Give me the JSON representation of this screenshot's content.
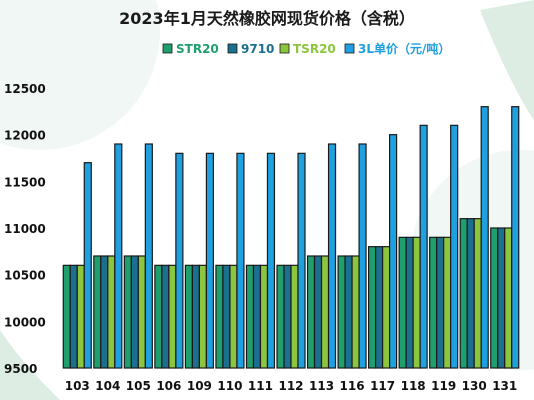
{
  "chart_data": {
    "type": "bar",
    "title": "2023年1月天然橡胶网现货价格（含税）",
    "categories": [
      "103",
      "104",
      "105",
      "106",
      "109",
      "110",
      "111",
      "112",
      "113",
      "116",
      "117",
      "118",
      "119",
      "130",
      "131"
    ],
    "series": [
      {
        "name": "STR20",
        "color": "#1f9e6e",
        "values": [
          10600,
          10700,
          10700,
          10600,
          10600,
          10600,
          10600,
          10600,
          10700,
          10700,
          10800,
          10900,
          10900,
          11100,
          11000
        ]
      },
      {
        "name": "9710",
        "color": "#1b6f8f",
        "values": [
          10600,
          10700,
          10700,
          10600,
          10600,
          10600,
          10600,
          10600,
          10700,
          10700,
          10800,
          10900,
          10900,
          11100,
          11000
        ]
      },
      {
        "name": "TSR20",
        "color": "#8cc63f",
        "values": [
          10600,
          10700,
          10700,
          10600,
          10600,
          10600,
          10600,
          10600,
          10700,
          10700,
          10800,
          10900,
          10900,
          11100,
          11000
        ]
      },
      {
        "name": "3L单价（元/吨）",
        "color": "#1fa0e0",
        "values": [
          11700,
          11900,
          11900,
          11800,
          11800,
          11800,
          11800,
          11800,
          11900,
          11900,
          12000,
          12100,
          12100,
          12300,
          12300
        ]
      }
    ],
    "yticks": [
      9500,
      10000,
      10500,
      11000,
      11500,
      12000,
      12500
    ],
    "ylim": [
      9500,
      12500
    ],
    "xlabel": "",
    "ylabel": "",
    "legend_position": "top",
    "grid": false
  }
}
